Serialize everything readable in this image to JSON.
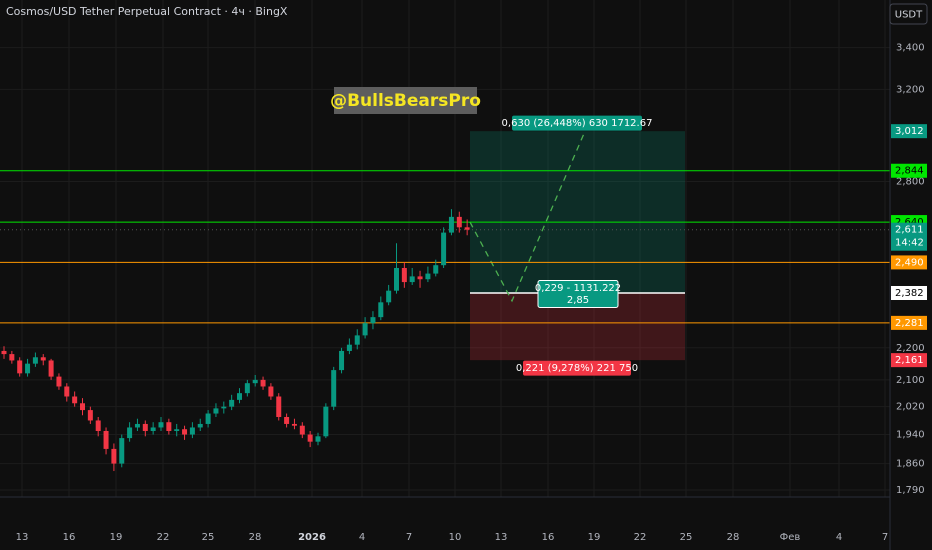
{
  "chart_data": {
    "type": "candlestick",
    "title": "Cosmos/USD Tether Perpetual Contract · 4ч · BingX",
    "currency": "USDT",
    "watermark": "@BullsBearsPro",
    "log_scale": true,
    "grid": true,
    "up_color": "#089981",
    "down_color": "#f23645",
    "ylim": [
      1772,
      3643
    ],
    "yticks": [
      {
        "value": 3400,
        "label": "3,400"
      },
      {
        "value": 3200,
        "label": "3,200"
      },
      {
        "value": 2800,
        "label": "2,800"
      },
      {
        "value": 2200,
        "label": "2,200"
      },
      {
        "value": 2100,
        "label": "2,100"
      },
      {
        "value": 2020,
        "label": "2,020"
      },
      {
        "value": 1940,
        "label": "1,940"
      },
      {
        "value": 1860,
        "label": "1,860"
      },
      {
        "value": 1790,
        "label": "1,790"
      }
    ],
    "x_labels": [
      "13",
      "16",
      "19",
      "22",
      "25",
      "28",
      "2026",
      "4",
      "7",
      "10",
      "13",
      "16",
      "19",
      "22",
      "25",
      "28",
      "Фев",
      "4",
      "7"
    ],
    "candles": [
      [
        2190,
        2205,
        2165,
        2180
      ],
      [
        2180,
        2190,
        2150,
        2160
      ],
      [
        2160,
        2170,
        2110,
        2120
      ],
      [
        2120,
        2165,
        2110,
        2150
      ],
      [
        2150,
        2185,
        2140,
        2170
      ],
      [
        2170,
        2180,
        2145,
        2160
      ],
      [
        2160,
        2165,
        2100,
        2110
      ],
      [
        2110,
        2120,
        2070,
        2080
      ],
      [
        2080,
        2090,
        2035,
        2050
      ],
      [
        2050,
        2065,
        2020,
        2030
      ],
      [
        2030,
        2045,
        1995,
        2010
      ],
      [
        2010,
        2020,
        1970,
        1980
      ],
      [
        1980,
        1990,
        1935,
        1950
      ],
      [
        1950,
        1960,
        1885,
        1900
      ],
      [
        1900,
        1915,
        1840,
        1860
      ],
      [
        1860,
        1940,
        1850,
        1930
      ],
      [
        1930,
        1975,
        1920,
        1960
      ],
      [
        1960,
        1985,
        1950,
        1970
      ],
      [
        1970,
        1980,
        1935,
        1950
      ],
      [
        1950,
        1975,
        1940,
        1960
      ],
      [
        1960,
        1990,
        1950,
        1975
      ],
      [
        1975,
        1985,
        1940,
        1950
      ],
      [
        1950,
        1970,
        1935,
        1955
      ],
      [
        1955,
        1965,
        1925,
        1940
      ],
      [
        1940,
        1975,
        1930,
        1960
      ],
      [
        1960,
        1985,
        1950,
        1970
      ],
      [
        1970,
        2010,
        1960,
        2000
      ],
      [
        2000,
        2030,
        1990,
        2015
      ],
      [
        2015,
        2035,
        2000,
        2020
      ],
      [
        2020,
        2055,
        2010,
        2040
      ],
      [
        2040,
        2075,
        2030,
        2060
      ],
      [
        2060,
        2100,
        2050,
        2090
      ],
      [
        2090,
        2115,
        2080,
        2100
      ],
      [
        2100,
        2110,
        2070,
        2080
      ],
      [
        2080,
        2090,
        2040,
        2050
      ],
      [
        2050,
        2060,
        1980,
        1990
      ],
      [
        1990,
        2000,
        1960,
        1970
      ],
      [
        1970,
        1985,
        1955,
        1965
      ],
      [
        1965,
        1975,
        1930,
        1940
      ],
      [
        1940,
        1950,
        1905,
        1920
      ],
      [
        1920,
        1945,
        1910,
        1935
      ],
      [
        1935,
        2030,
        1930,
        2020
      ],
      [
        2020,
        2140,
        2010,
        2130
      ],
      [
        2130,
        2200,
        2120,
        2190
      ],
      [
        2190,
        2230,
        2180,
        2210
      ],
      [
        2210,
        2260,
        2195,
        2240
      ],
      [
        2240,
        2300,
        2230,
        2280
      ],
      [
        2280,
        2320,
        2260,
        2300
      ],
      [
        2300,
        2370,
        2290,
        2350
      ],
      [
        2350,
        2410,
        2340,
        2390
      ],
      [
        2390,
        2560,
        2380,
        2470
      ],
      [
        2470,
        2490,
        2400,
        2420
      ],
      [
        2420,
        2470,
        2410,
        2440
      ],
      [
        2440,
        2460,
        2400,
        2430
      ],
      [
        2430,
        2475,
        2420,
        2450
      ],
      [
        2450,
        2500,
        2440,
        2480
      ],
      [
        2480,
        2620,
        2470,
        2600
      ],
      [
        2600,
        2690,
        2590,
        2660
      ],
      [
        2660,
        2680,
        2600,
        2620
      ],
      [
        2620,
        2650,
        2590,
        2611
      ]
    ],
    "price_lines": [
      {
        "value": 2844,
        "label": "2,844",
        "color": "#00e600"
      },
      {
        "value": 2640,
        "label": "2,640",
        "color": "#00e600"
      },
      {
        "value": 2490,
        "label": "2,490",
        "color": "#ff9800"
      },
      {
        "value": 2281,
        "label": "2,281",
        "color": "#ff9800"
      }
    ],
    "current_price": {
      "value": 2611,
      "label": "2,611",
      "countdown": "14:42",
      "color": "#089981"
    },
    "position": {
      "target": 3012,
      "target_price_label": "3,012",
      "target_text": "0,630 (26,448%) 630 1712.67",
      "entry": 2382,
      "entry_price_label": "2,382",
      "entry_text": [
        "0,229 - 1131.222",
        "2,85"
      ],
      "stop": 2161,
      "stop_price_label": "2,161",
      "stop_text": "0,221 (9,278%) 221 750",
      "projection": [
        2640,
        2355,
        3012
      ]
    }
  }
}
